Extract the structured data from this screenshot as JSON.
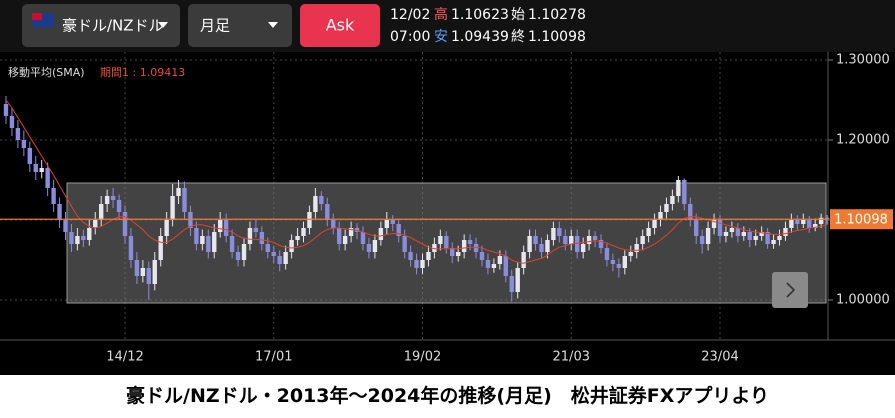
{
  "header": {
    "pair": "豪ドル/NZドル",
    "timeframe": "月足",
    "ask": "Ask",
    "date": "12/02",
    "time": "07:00",
    "high_label": "高",
    "open_label": "始",
    "low_label": "安",
    "close_label": "終"
  },
  "caption": "豪ドル/NZドル・2013年～2024年の推移(月足)　松井証券FXアプリより",
  "chart_data": {
    "type": "candlestick",
    "indicator": "移動平均(SMA)",
    "sma_label": "期間1 : ",
    "up_color": "#e6e6ee",
    "down_color": "#8c8cdc",
    "sma_color": "#d9442f",
    "last_color": "#f07a32",
    "ylim": [
      0.95,
      1.31
    ],
    "yticks": [
      {
        "value": 1.0,
        "label": "1.00000"
      },
      {
        "value": 1.1,
        "label": "1.10000"
      },
      {
        "value": 1.2,
        "label": "1.20000"
      },
      {
        "value": 1.3,
        "label": "1.30000"
      }
    ],
    "categories": [
      null,
      null,
      null,
      null,
      null,
      null,
      null,
      null,
      null,
      null,
      null,
      null,
      null,
      null,
      null,
      null,
      null,
      null,
      null,
      null,
      "14/12",
      null,
      null,
      null,
      null,
      null,
      null,
      null,
      null,
      null,
      null,
      null,
      null,
      null,
      null,
      null,
      null,
      null,
      null,
      null,
      null,
      null,
      null,
      null,
      null,
      "17/01",
      null,
      null,
      null,
      null,
      null,
      null,
      null,
      null,
      null,
      null,
      null,
      null,
      null,
      null,
      null,
      null,
      null,
      null,
      null,
      null,
      null,
      null,
      null,
      null,
      "19/02",
      null,
      null,
      null,
      null,
      null,
      null,
      null,
      null,
      null,
      null,
      null,
      null,
      null,
      null,
      null,
      null,
      null,
      null,
      null,
      null,
      null,
      null,
      null,
      null,
      "21/03",
      null,
      null,
      null,
      null,
      null,
      null,
      null,
      null,
      null,
      null,
      null,
      null,
      null,
      null,
      null,
      null,
      null,
      null,
      null,
      null,
      null,
      null,
      null,
      null,
      "23/04",
      null,
      null,
      null,
      null,
      null,
      null,
      null,
      null,
      null,
      null,
      null,
      null,
      null,
      null,
      null,
      null,
      null,
      null
    ],
    "ohlc": [
      [
        1.245,
        1.255,
        1.22,
        1.23
      ],
      [
        1.23,
        1.24,
        1.205,
        1.215
      ],
      [
        1.215,
        1.225,
        1.19,
        1.2
      ],
      [
        1.2,
        1.212,
        1.18,
        1.19
      ],
      [
        1.19,
        1.198,
        1.16,
        1.17
      ],
      [
        1.17,
        1.18,
        1.15,
        1.16
      ],
      [
        1.16,
        1.175,
        1.152,
        1.165
      ],
      [
        1.165,
        1.172,
        1.13,
        1.14
      ],
      [
        1.14,
        1.15,
        1.11,
        1.12
      ],
      [
        1.12,
        1.128,
        1.09,
        1.1
      ],
      [
        1.1,
        1.11,
        1.075,
        1.085
      ],
      [
        1.085,
        1.095,
        1.06,
        1.07
      ],
      [
        1.07,
        1.09,
        1.062,
        1.08
      ],
      [
        1.08,
        1.088,
        1.066,
        1.075
      ],
      [
        1.075,
        1.1,
        1.068,
        1.09
      ],
      [
        1.09,
        1.11,
        1.082,
        1.1
      ],
      [
        1.1,
        1.13,
        1.092,
        1.12
      ],
      [
        1.12,
        1.138,
        1.11,
        1.13
      ],
      [
        1.13,
        1.14,
        1.115,
        1.125
      ],
      [
        1.125,
        1.132,
        1.1,
        1.11
      ],
      [
        1.11,
        1.118,
        1.07,
        1.08
      ],
      [
        1.08,
        1.09,
        1.04,
        1.05
      ],
      [
        1.05,
        1.06,
        1.02,
        1.03
      ],
      [
        1.03,
        1.05,
        1.022,
        1.04
      ],
      [
        1.04,
        1.048,
        1.0,
        1.02
      ],
      [
        1.02,
        1.06,
        1.012,
        1.05
      ],
      [
        1.05,
        1.09,
        1.042,
        1.08
      ],
      [
        1.08,
        1.11,
        1.07,
        1.1
      ],
      [
        1.1,
        1.145,
        1.092,
        1.13
      ],
      [
        1.13,
        1.15,
        1.12,
        1.14
      ],
      [
        1.14,
        1.148,
        1.1,
        1.11
      ],
      [
        1.11,
        1.118,
        1.08,
        1.09
      ],
      [
        1.09,
        1.098,
        1.062,
        1.07
      ],
      [
        1.07,
        1.088,
        1.062,
        1.08
      ],
      [
        1.08,
        1.088,
        1.052,
        1.06
      ],
      [
        1.06,
        1.095,
        1.052,
        1.085
      ],
      [
        1.085,
        1.11,
        1.078,
        1.1
      ],
      [
        1.1,
        1.108,
        1.072,
        1.08
      ],
      [
        1.08,
        1.088,
        1.052,
        1.06
      ],
      [
        1.06,
        1.068,
        1.042,
        1.05
      ],
      [
        1.05,
        1.078,
        1.042,
        1.07
      ],
      [
        1.07,
        1.098,
        1.062,
        1.09
      ],
      [
        1.09,
        1.1,
        1.078,
        1.085
      ],
      [
        1.085,
        1.092,
        1.062,
        1.07
      ],
      [
        1.07,
        1.078,
        1.052,
        1.06
      ],
      [
        1.06,
        1.068,
        1.046,
        1.055
      ],
      [
        1.055,
        1.062,
        1.036,
        1.045
      ],
      [
        1.045,
        1.068,
        1.038,
        1.06
      ],
      [
        1.06,
        1.082,
        1.052,
        1.075
      ],
      [
        1.075,
        1.09,
        1.068,
        1.08
      ],
      [
        1.08,
        1.098,
        1.072,
        1.09
      ],
      [
        1.09,
        1.118,
        1.082,
        1.11
      ],
      [
        1.11,
        1.14,
        1.102,
        1.13
      ],
      [
        1.13,
        1.136,
        1.112,
        1.12
      ],
      [
        1.12,
        1.128,
        1.092,
        1.1
      ],
      [
        1.1,
        1.108,
        1.082,
        1.09
      ],
      [
        1.09,
        1.098,
        1.062,
        1.07
      ],
      [
        1.07,
        1.088,
        1.062,
        1.08
      ],
      [
        1.08,
        1.098,
        1.072,
        1.09
      ],
      [
        1.09,
        1.096,
        1.076,
        1.085
      ],
      [
        1.085,
        1.092,
        1.062,
        1.07
      ],
      [
        1.07,
        1.078,
        1.052,
        1.06
      ],
      [
        1.06,
        1.082,
        1.052,
        1.075
      ],
      [
        1.075,
        1.098,
        1.068,
        1.09
      ],
      [
        1.09,
        1.11,
        1.082,
        1.1
      ],
      [
        1.1,
        1.106,
        1.086,
        1.095
      ],
      [
        1.095,
        1.102,
        1.072,
        1.08
      ],
      [
        1.08,
        1.088,
        1.052,
        1.06
      ],
      [
        1.06,
        1.068,
        1.042,
        1.05
      ],
      [
        1.05,
        1.058,
        1.032,
        1.04
      ],
      [
        1.04,
        1.058,
        1.032,
        1.05
      ],
      [
        1.05,
        1.068,
        1.042,
        1.06
      ],
      [
        1.06,
        1.078,
        1.052,
        1.07
      ],
      [
        1.07,
        1.088,
        1.062,
        1.08
      ],
      [
        1.08,
        1.086,
        1.058,
        1.065
      ],
      [
        1.065,
        1.072,
        1.046,
        1.055
      ],
      [
        1.055,
        1.068,
        1.048,
        1.06
      ],
      [
        1.06,
        1.082,
        1.052,
        1.075
      ],
      [
        1.075,
        1.082,
        1.062,
        1.07
      ],
      [
        1.07,
        1.078,
        1.052,
        1.06
      ],
      [
        1.06,
        1.068,
        1.042,
        1.05
      ],
      [
        1.05,
        1.058,
        1.032,
        1.04
      ],
      [
        1.04,
        1.052,
        1.034,
        1.045
      ],
      [
        1.045,
        1.062,
        1.038,
        1.055
      ],
      [
        1.055,
        1.062,
        1.022,
        1.03
      ],
      [
        1.03,
        1.038,
        0.998,
        1.01
      ],
      [
        1.01,
        1.048,
        1.002,
        1.04
      ],
      [
        1.04,
        1.068,
        1.032,
        1.06
      ],
      [
        1.06,
        1.088,
        1.052,
        1.08
      ],
      [
        1.08,
        1.088,
        1.062,
        1.07
      ],
      [
        1.07,
        1.078,
        1.052,
        1.06
      ],
      [
        1.06,
        1.082,
        1.052,
        1.075
      ],
      [
        1.075,
        1.098,
        1.068,
        1.09
      ],
      [
        1.09,
        1.098,
        1.072,
        1.08
      ],
      [
        1.08,
        1.088,
        1.062,
        1.07
      ],
      [
        1.07,
        1.088,
        1.062,
        1.08
      ],
      [
        1.08,
        1.088,
        1.052,
        1.06
      ],
      [
        1.06,
        1.078,
        1.052,
        1.07
      ],
      [
        1.07,
        1.088,
        1.062,
        1.08
      ],
      [
        1.08,
        1.086,
        1.066,
        1.075
      ],
      [
        1.075,
        1.082,
        1.058,
        1.065
      ],
      [
        1.065,
        1.072,
        1.042,
        1.05
      ],
      [
        1.05,
        1.058,
        1.036,
        1.045
      ],
      [
        1.045,
        1.052,
        1.028,
        1.04
      ],
      [
        1.04,
        1.062,
        1.032,
        1.055
      ],
      [
        1.055,
        1.068,
        1.048,
        1.06
      ],
      [
        1.06,
        1.078,
        1.052,
        1.07
      ],
      [
        1.07,
        1.088,
        1.062,
        1.08
      ],
      [
        1.08,
        1.098,
        1.072,
        1.09
      ],
      [
        1.09,
        1.108,
        1.082,
        1.1
      ],
      [
        1.1,
        1.118,
        1.092,
        1.11
      ],
      [
        1.11,
        1.128,
        1.102,
        1.12
      ],
      [
        1.12,
        1.138,
        1.112,
        1.13
      ],
      [
        1.13,
        1.155,
        1.122,
        1.15
      ],
      [
        1.15,
        1.152,
        1.112,
        1.12
      ],
      [
        1.12,
        1.128,
        1.092,
        1.1
      ],
      [
        1.1,
        1.108,
        1.07,
        1.08
      ],
      [
        1.08,
        1.088,
        1.058,
        1.07
      ],
      [
        1.07,
        1.098,
        1.062,
        1.09
      ],
      [
        1.09,
        1.108,
        1.082,
        1.1
      ],
      [
        1.1,
        1.106,
        1.072,
        1.08
      ],
      [
        1.08,
        1.092,
        1.072,
        1.085
      ],
      [
        1.085,
        1.098,
        1.078,
        1.09
      ],
      [
        1.09,
        1.096,
        1.072,
        1.08
      ],
      [
        1.08,
        1.092,
        1.074,
        1.085
      ],
      [
        1.085,
        1.09,
        1.066,
        1.075
      ],
      [
        1.075,
        1.088,
        1.068,
        1.08
      ],
      [
        1.08,
        1.092,
        1.074,
        1.085
      ],
      [
        1.085,
        1.09,
        1.064,
        1.07
      ],
      [
        1.07,
        1.082,
        1.064,
        1.075
      ],
      [
        1.075,
        1.088,
        1.068,
        1.08
      ],
      [
        1.08,
        1.098,
        1.074,
        1.09
      ],
      [
        1.09,
        1.108,
        1.084,
        1.1
      ],
      [
        1.1,
        1.106,
        1.088,
        1.095
      ],
      [
        1.095,
        1.108,
        1.09,
        1.1
      ],
      [
        1.1,
        1.105,
        1.084,
        1.09
      ],
      [
        1.09,
        1.102,
        1.086,
        1.095
      ],
      [
        1.095,
        1.108,
        1.09,
        1.10278
      ],
      [
        1.10278,
        1.10623,
        1.09439,
        1.10098
      ]
    ],
    "sma": [
      1.25,
      1.24,
      1.228,
      1.216,
      1.204,
      1.192,
      1.18,
      1.168,
      1.156,
      1.143,
      1.13,
      1.117,
      1.105,
      1.097,
      1.092,
      1.09,
      1.092,
      1.096,
      1.101,
      1.104,
      1.104,
      1.1,
      1.094,
      1.088,
      1.08,
      1.075,
      1.072,
      1.072,
      1.076,
      1.082,
      1.088,
      1.092,
      1.094,
      1.094,
      1.092,
      1.09,
      1.089,
      1.088,
      1.085,
      1.08,
      1.077,
      1.076,
      1.076,
      1.075,
      1.074,
      1.072,
      1.068,
      1.066,
      1.065,
      1.066,
      1.068,
      1.072,
      1.078,
      1.084,
      1.088,
      1.09,
      1.09,
      1.089,
      1.088,
      1.087,
      1.085,
      1.082,
      1.08,
      1.08,
      1.082,
      1.083,
      1.083,
      1.081,
      1.078,
      1.074,
      1.07,
      1.066,
      1.064,
      1.064,
      1.064,
      1.064,
      1.064,
      1.065,
      1.066,
      1.066,
      1.065,
      1.062,
      1.06,
      1.058,
      1.055,
      1.05,
      1.047,
      1.046,
      1.048,
      1.05,
      1.052,
      1.056,
      1.062,
      1.066,
      1.068,
      1.07,
      1.071,
      1.072,
      1.073,
      1.074,
      1.073,
      1.071,
      1.068,
      1.065,
      1.063,
      1.062,
      1.062,
      1.063,
      1.066,
      1.07,
      1.075,
      1.081,
      1.088,
      1.096,
      1.102,
      1.104,
      1.104,
      1.102,
      1.1,
      1.098,
      1.096,
      1.094,
      1.092,
      1.09,
      1.088,
      1.086,
      1.085,
      1.084,
      1.083,
      1.082,
      1.082,
      1.083,
      1.085,
      1.087,
      1.088,
      1.09,
      1.091,
      1.092,
      1.09413
    ]
  }
}
